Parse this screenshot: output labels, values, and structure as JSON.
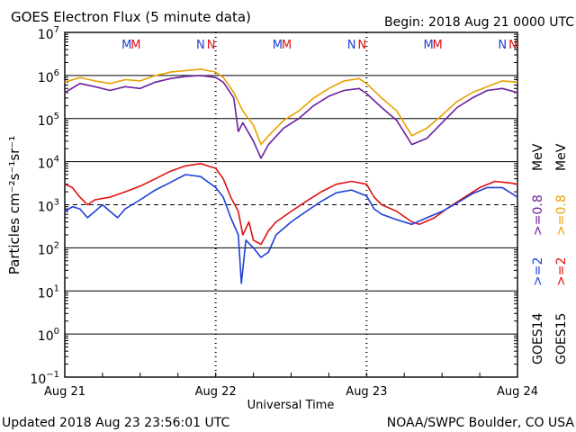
{
  "header": {
    "title": "GOES Electron Flux (5 minute data)",
    "begin": "Begin: 2018 Aug 21 0000 UTC"
  },
  "footer": {
    "updated": "Updated 2018 Aug 23 23:56:01 UTC",
    "source": "NOAA/SWPC Boulder, CO USA"
  },
  "colors": {
    "goes14_2mev": "#1f3fd6",
    "goes15_2mev": "#e01010",
    "goes14_08mev": "#6a1fa0",
    "goes15_08mev": "#e8a000",
    "marker_m": "#2040d0",
    "marker_n": "#e01010"
  },
  "chart_data": {
    "type": "line",
    "title": "GOES Electron Flux (5 minute data)",
    "xlabel": "Universal Time",
    "ylabel": "Particles cm⁻²s⁻¹sr⁻¹",
    "x_tick_labels": [
      "Aug 21",
      "Aug 22",
      "Aug 23",
      "Aug 24"
    ],
    "xlim_days": [
      0,
      3
    ],
    "ylog": true,
    "ylim": [
      0.1,
      10000000
    ],
    "y_ticks": [
      {
        "base": "10",
        "exp": "7"
      },
      {
        "base": "10",
        "exp": "6"
      },
      {
        "base": "10",
        "exp": "5"
      },
      {
        "base": "10",
        "exp": "4"
      },
      {
        "base": "10",
        "exp": "3"
      },
      {
        "base": "10",
        "exp": "2"
      },
      {
        "base": "10",
        "exp": "1"
      },
      {
        "base": "10",
        "exp": "0"
      },
      {
        "base": "10",
        "exp": "−1"
      }
    ],
    "threshold_line": 1000,
    "right_labels": {
      "goes14": "GOES14",
      "goes15": "GOES15",
      "g14_2": ">=2",
      "g15_2": ">=2",
      "g14_08": ">=0.8",
      "g15_08": ">=0.8",
      "mev": "MeV"
    },
    "markers": [
      {
        "label": "M",
        "day": 0.41,
        "color": "#2040d0"
      },
      {
        "label": "M",
        "day": 0.47,
        "color": "#e01010"
      },
      {
        "label": "N",
        "day": 0.9,
        "color": "#2040d0"
      },
      {
        "label": "N",
        "day": 0.97,
        "color": "#e01010"
      },
      {
        "label": "M",
        "day": 1.41,
        "color": "#2040d0"
      },
      {
        "label": "M",
        "day": 1.47,
        "color": "#e01010"
      },
      {
        "label": "N",
        "day": 1.9,
        "color": "#2040d0"
      },
      {
        "label": "N",
        "day": 1.97,
        "color": "#e01010"
      },
      {
        "label": "M",
        "day": 2.41,
        "color": "#2040d0"
      },
      {
        "label": "M",
        "day": 2.47,
        "color": "#e01010"
      },
      {
        "label": "N",
        "day": 2.9,
        "color": "#2040d0"
      },
      {
        "label": "N",
        "day": 2.97,
        "color": "#e01010"
      }
    ],
    "series": [
      {
        "name": "GOES15 >=0.8 MeV",
        "color": "#e8a000",
        "points": [
          [
            0,
            700000
          ],
          [
            0.1,
            900000
          ],
          [
            0.2,
            750000
          ],
          [
            0.3,
            650000
          ],
          [
            0.4,
            800000
          ],
          [
            0.5,
            750000
          ],
          [
            0.6,
            1000000
          ],
          [
            0.7,
            1200000
          ],
          [
            0.8,
            1300000
          ],
          [
            0.9,
            1400000
          ],
          [
            1.0,
            1200000
          ],
          [
            1.05,
            900000
          ],
          [
            1.12,
            400000
          ],
          [
            1.18,
            150000
          ],
          [
            1.25,
            70000
          ],
          [
            1.3,
            25000
          ],
          [
            1.35,
            40000
          ],
          [
            1.45,
            90000
          ],
          [
            1.55,
            150000
          ],
          [
            1.65,
            300000
          ],
          [
            1.75,
            500000
          ],
          [
            1.85,
            750000
          ],
          [
            1.95,
            850000
          ],
          [
            2.0,
            650000
          ],
          [
            2.1,
            300000
          ],
          [
            2.2,
            150000
          ],
          [
            2.3,
            40000
          ],
          [
            2.4,
            60000
          ],
          [
            2.5,
            120000
          ],
          [
            2.6,
            250000
          ],
          [
            2.7,
            400000
          ],
          [
            2.8,
            550000
          ],
          [
            2.9,
            750000
          ],
          [
            3.0,
            700000
          ]
        ]
      },
      {
        "name": "GOES14 >=0.8 MeV",
        "color": "#6a1fa0",
        "points": [
          [
            0,
            400000
          ],
          [
            0.1,
            650000
          ],
          [
            0.2,
            550000
          ],
          [
            0.3,
            450000
          ],
          [
            0.4,
            550000
          ],
          [
            0.5,
            500000
          ],
          [
            0.6,
            700000
          ],
          [
            0.7,
            850000
          ],
          [
            0.8,
            950000
          ],
          [
            0.9,
            1000000
          ],
          [
            1.0,
            900000
          ],
          [
            1.05,
            700000
          ],
          [
            1.12,
            300000
          ],
          [
            1.15,
            50000
          ],
          [
            1.18,
            80000
          ],
          [
            1.25,
            30000
          ],
          [
            1.3,
            12000
          ],
          [
            1.35,
            25000
          ],
          [
            1.45,
            60000
          ],
          [
            1.55,
            100000
          ],
          [
            1.65,
            200000
          ],
          [
            1.75,
            330000
          ],
          [
            1.85,
            450000
          ],
          [
            1.95,
            500000
          ],
          [
            2.0,
            380000
          ],
          [
            2.1,
            180000
          ],
          [
            2.2,
            90000
          ],
          [
            2.3,
            25000
          ],
          [
            2.4,
            35000
          ],
          [
            2.5,
            80000
          ],
          [
            2.6,
            180000
          ],
          [
            2.7,
            300000
          ],
          [
            2.8,
            450000
          ],
          [
            2.9,
            500000
          ],
          [
            3.0,
            400000
          ]
        ]
      },
      {
        "name": "GOES15 >=2 MeV",
        "color": "#e01010",
        "points": [
          [
            0,
            3000
          ],
          [
            0.05,
            2500
          ],
          [
            0.1,
            1500
          ],
          [
            0.15,
            1000
          ],
          [
            0.2,
            1300
          ],
          [
            0.3,
            1500
          ],
          [
            0.4,
            2000
          ],
          [
            0.5,
            2700
          ],
          [
            0.6,
            4000
          ],
          [
            0.7,
            6000
          ],
          [
            0.8,
            8000
          ],
          [
            0.9,
            9000
          ],
          [
            1.0,
            7000
          ],
          [
            1.05,
            4000
          ],
          [
            1.1,
            1500
          ],
          [
            1.15,
            700
          ],
          [
            1.18,
            200
          ],
          [
            1.22,
            400
          ],
          [
            1.25,
            150
          ],
          [
            1.3,
            120
          ],
          [
            1.35,
            250
          ],
          [
            1.4,
            400
          ],
          [
            1.5,
            700
          ],
          [
            1.6,
            1200
          ],
          [
            1.7,
            2000
          ],
          [
            1.8,
            3000
          ],
          [
            1.9,
            3500
          ],
          [
            2.0,
            3000
          ],
          [
            2.05,
            1500
          ],
          [
            2.1,
            1000
          ],
          [
            2.2,
            700
          ],
          [
            2.3,
            400
          ],
          [
            2.35,
            350
          ],
          [
            2.45,
            500
          ],
          [
            2.55,
            900
          ],
          [
            2.65,
            1500
          ],
          [
            2.75,
            2500
          ],
          [
            2.85,
            3500
          ],
          [
            2.95,
            3200
          ],
          [
            3.0,
            3000
          ]
        ]
      },
      {
        "name": "GOES14 >=2 MeV",
        "color": "#1f3fd6",
        "points": [
          [
            0,
            700
          ],
          [
            0.05,
            900
          ],
          [
            0.1,
            800
          ],
          [
            0.15,
            500
          ],
          [
            0.2,
            700
          ],
          [
            0.25,
            1000
          ],
          [
            0.3,
            700
          ],
          [
            0.35,
            500
          ],
          [
            0.4,
            800
          ],
          [
            0.5,
            1300
          ],
          [
            0.6,
            2200
          ],
          [
            0.7,
            3300
          ],
          [
            0.8,
            5000
          ],
          [
            0.9,
            4500
          ],
          [
            1.0,
            2500
          ],
          [
            1.05,
            1500
          ],
          [
            1.1,
            500
          ],
          [
            1.15,
            200
          ],
          [
            1.17,
            15
          ],
          [
            1.2,
            150
          ],
          [
            1.25,
            100
          ],
          [
            1.3,
            60
          ],
          [
            1.35,
            80
          ],
          [
            1.4,
            200
          ],
          [
            1.5,
            400
          ],
          [
            1.6,
            700
          ],
          [
            1.7,
            1200
          ],
          [
            1.8,
            1900
          ],
          [
            1.9,
            2200
          ],
          [
            2.0,
            1600
          ],
          [
            2.05,
            800
          ],
          [
            2.1,
            600
          ],
          [
            2.2,
            450
          ],
          [
            2.3,
            350
          ],
          [
            2.4,
            500
          ],
          [
            2.5,
            700
          ],
          [
            2.6,
            1100
          ],
          [
            2.7,
            1800
          ],
          [
            2.8,
            2500
          ],
          [
            2.9,
            2500
          ],
          [
            3.0,
            1500
          ]
        ]
      }
    ]
  }
}
